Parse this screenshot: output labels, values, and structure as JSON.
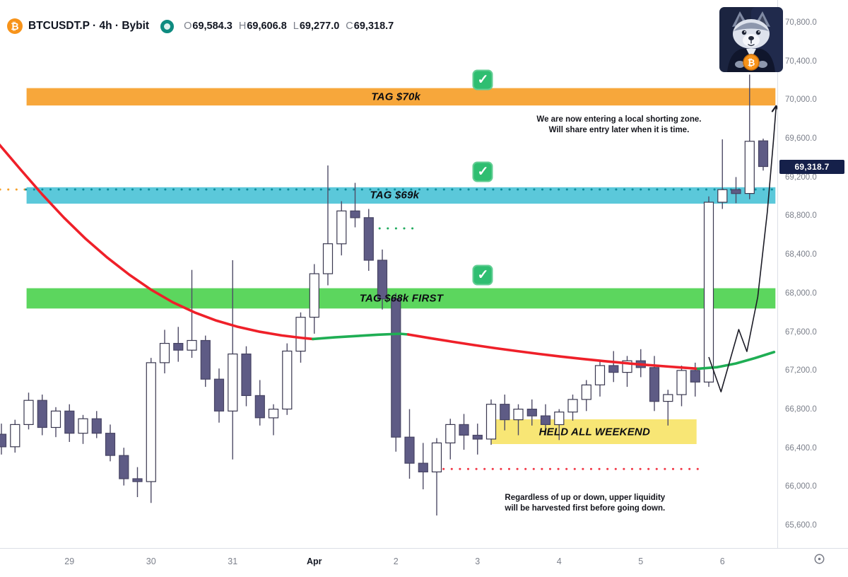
{
  "header": {
    "symbol_icon": "₿",
    "title": "BTCUSDT.P · 4h · Bybit",
    "ohlc": [
      {
        "key": "O",
        "value": "69,584.3"
      },
      {
        "key": "H",
        "value": "69,606.8"
      },
      {
        "key": "L",
        "value": "69,277.0"
      },
      {
        "key": "C",
        "value": "69,318.7"
      }
    ]
  },
  "price_scale": {
    "ticks": [
      {
        "value": 70800,
        "label": "70,800.0"
      },
      {
        "value": 70400,
        "label": "70,400.0"
      },
      {
        "value": 70000,
        "label": "70,000.0"
      },
      {
        "value": 69600,
        "label": "69,600.0"
      },
      {
        "value": 69200,
        "label": "69,200.0"
      },
      {
        "value": 68800,
        "label": "68,800.0"
      },
      {
        "value": 68400,
        "label": "68,400.0"
      },
      {
        "value": 68000,
        "label": "68,000.0"
      },
      {
        "value": 67600,
        "label": "67,600.0"
      },
      {
        "value": 67200,
        "label": "67,200.0"
      },
      {
        "value": 66800,
        "label": "66,800.0"
      },
      {
        "value": 66400,
        "label": "66,400.0"
      },
      {
        "value": 66000,
        "label": "66,000.0"
      },
      {
        "value": 65600,
        "label": "65,600.0"
      }
    ],
    "last": {
      "value": 69318.7,
      "label": "69,318.7",
      "bg": "#15204a",
      "fg": "#ffffff"
    }
  },
  "time_scale": {
    "ticks": [
      {
        "index": 5,
        "label": "29"
      },
      {
        "index": 11,
        "label": "30"
      },
      {
        "index": 17,
        "label": "31"
      },
      {
        "index": 23,
        "label": "Apr",
        "emphasis": true
      },
      {
        "index": 29,
        "label": "2"
      },
      {
        "index": 35,
        "label": "3"
      },
      {
        "index": 41,
        "label": "4"
      },
      {
        "index": 47,
        "label": "5"
      },
      {
        "index": 53,
        "label": "6"
      }
    ]
  },
  "chart_data": {
    "type": "candlestick",
    "symbol": "BTCUSDT.P",
    "interval": "4h",
    "exchange": "Bybit",
    "visible_price_range": [
      65380,
      71040
    ],
    "last_ohlc": {
      "open": 69584.3,
      "high": 69606.8,
      "low": 69277.0,
      "close": 69318.7
    },
    "candles_ohlc": [
      [
        66550,
        66660,
        66340,
        66420
      ],
      [
        66420,
        66700,
        66360,
        66650
      ],
      [
        66650,
        66980,
        66600,
        66900
      ],
      [
        66900,
        66960,
        66540,
        66620
      ],
      [
        66620,
        66830,
        66520,
        66790
      ],
      [
        66790,
        66860,
        66470,
        66560
      ],
      [
        66560,
        66750,
        66450,
        66710
      ],
      [
        66710,
        66790,
        66510,
        66560
      ],
      [
        66560,
        66650,
        66270,
        66330
      ],
      [
        66330,
        66410,
        66020,
        66090
      ],
      [
        66090,
        66210,
        65900,
        66060
      ],
      [
        66060,
        67340,
        65840,
        67290
      ],
      [
        67290,
        67630,
        67180,
        67490
      ],
      [
        67490,
        67660,
        67300,
        67420
      ],
      [
        67420,
        68250,
        67340,
        67520
      ],
      [
        67520,
        67570,
        67040,
        67120
      ],
      [
        67120,
        67230,
        66670,
        66790
      ],
      [
        66790,
        68350,
        66290,
        67380
      ],
      [
        67380,
        67460,
        66840,
        66950
      ],
      [
        66950,
        67110,
        66640,
        66720
      ],
      [
        66720,
        66860,
        66540,
        66810
      ],
      [
        66810,
        67490,
        66750,
        67410
      ],
      [
        67410,
        67810,
        67290,
        67760
      ],
      [
        67760,
        68310,
        67590,
        68210
      ],
      [
        68210,
        69330,
        68090,
        68520
      ],
      [
        68520,
        68960,
        68400,
        68860
      ],
      [
        68860,
        69150,
        68690,
        68790
      ],
      [
        68790,
        68880,
        68240,
        68350
      ],
      [
        68350,
        68460,
        67840,
        67950
      ],
      [
        67950,
        68010,
        66370,
        66520
      ],
      [
        66520,
        66810,
        66090,
        66250
      ],
      [
        66250,
        66460,
        65980,
        66160
      ],
      [
        66160,
        66510,
        65710,
        66460
      ],
      [
        66460,
        66710,
        66290,
        66650
      ],
      [
        66650,
        66760,
        66390,
        66540
      ],
      [
        66540,
        66660,
        66340,
        66500
      ],
      [
        66500,
        66910,
        66440,
        66860
      ],
      [
        66860,
        66960,
        66590,
        66700
      ],
      [
        66700,
        66860,
        66540,
        66810
      ],
      [
        66810,
        66910,
        66640,
        66740
      ],
      [
        66740,
        66860,
        66540,
        66650
      ],
      [
        66650,
        66810,
        66490,
        66780
      ],
      [
        66780,
        66960,
        66690,
        66910
      ],
      [
        66910,
        67110,
        66790,
        67060
      ],
      [
        67060,
        67310,
        66940,
        67260
      ],
      [
        67260,
        67410,
        67090,
        67190
      ],
      [
        67190,
        67360,
        67040,
        67310
      ],
      [
        67310,
        67430,
        67140,
        67240
      ],
      [
        67240,
        67360,
        66790,
        66890
      ],
      [
        66890,
        67010,
        66640,
        66960
      ],
      [
        66960,
        67260,
        66840,
        67210
      ],
      [
        67210,
        67290,
        66940,
        67090
      ],
      [
        67090,
        69010,
        67040,
        68950
      ],
      [
        68950,
        69600,
        68880,
        69080
      ],
      [
        69080,
        69210,
        68940,
        69040
      ],
      [
        69040,
        70270,
        68980,
        69580
      ],
      [
        69584.3,
        69606.8,
        69277.0,
        69318.7
      ]
    ],
    "colors": {
      "up_fill": "#ffffff",
      "up_border": "#3a384f",
      "down_fill": "#5e5b85",
      "down_border": "#474463",
      "wick": "#4e4b66"
    },
    "ma_colored": {
      "description": "slope-colored moving average",
      "segments": [
        {
          "color": "#ef2029",
          "points": [
            [
              -0.15,
              69545
            ],
            [
              1.4,
              69290
            ],
            [
              3.0,
              69030
            ],
            [
              4.6,
              68790
            ],
            [
              6.2,
              68570
            ],
            [
              7.8,
              68375
            ],
            [
              9.4,
              68200
            ],
            [
              11.0,
              68045
            ],
            [
              12.6,
              67915
            ],
            [
              14.2,
              67810
            ],
            [
              15.8,
              67725
            ],
            [
              17.4,
              67660
            ],
            [
              19.0,
              67610
            ],
            [
              20.6,
              67572
            ],
            [
              22.2,
              67545
            ],
            [
              22.9,
              67535
            ]
          ]
        },
        {
          "color": "#1fae54",
          "points": [
            [
              22.9,
              67535
            ],
            [
              24.5,
              67552
            ],
            [
              26.1,
              67566
            ],
            [
              27.7,
              67580
            ],
            [
              29.3,
              67589
            ],
            [
              29.9,
              67582
            ]
          ]
        },
        {
          "color": "#ef2029",
          "points": [
            [
              29.9,
              67582
            ],
            [
              31.5,
              67544
            ],
            [
              33.1,
              67508
            ],
            [
              34.7,
              67473
            ],
            [
              36.3,
              67440
            ],
            [
              37.9,
              67410
            ],
            [
              39.5,
              67381
            ],
            [
              41.1,
              67354
            ],
            [
              42.7,
              67329
            ],
            [
              44.3,
              67306
            ],
            [
              45.9,
              67285
            ],
            [
              47.5,
              67266
            ],
            [
              49.1,
              67249
            ],
            [
              50.3,
              67237
            ],
            [
              51.2,
              67228
            ]
          ]
        },
        {
          "color": "#1fae54",
          "points": [
            [
              51.2,
              67228
            ],
            [
              52.6,
              67243
            ],
            [
              54.0,
              67282
            ],
            [
              55.4,
              67338
            ],
            [
              56.8,
              67400
            ]
          ]
        }
      ]
    },
    "zones": [
      {
        "id": "tag-70k",
        "label": "TAG $70k",
        "price_top": 70130,
        "price_bottom": 69950,
        "from_index": 1.85,
        "to_index": 56.9,
        "color": "rgba(246,160,42,0.92)",
        "label_index": 29.0,
        "checked": true,
        "check_index": 35.4,
        "check_price": 70215
      },
      {
        "id": "tag-69k",
        "label": "TAG $69k",
        "price_top": 69105,
        "price_bottom": 68935,
        "from_index": 1.85,
        "to_index": 56.9,
        "color": "rgba(62,190,212,0.85)",
        "label_index": 28.9,
        "checked": true,
        "check_index": 35.4,
        "check_price": 69264
      },
      {
        "id": "tag-68k",
        "label": "TAG $68k FIRST",
        "price_top": 68060,
        "price_bottom": 67850,
        "from_index": 1.85,
        "to_index": 56.9,
        "color": "rgba(74,210,76,0.9)",
        "label_index": 29.4,
        "checked": true,
        "check_index": 35.4,
        "check_price": 68196
      },
      {
        "id": "held-weekend",
        "label": "HELD ALL WEEKEND",
        "price_top": 66704,
        "price_bottom": 66448,
        "from_index": 36.0,
        "to_index": 51.1,
        "color": "rgba(247,226,93,0.85)",
        "label_index": 43.6,
        "checked": false
      }
    ],
    "dotted_levels": [
      {
        "price": 69081,
        "from_index": -0.1,
        "to_index": 1.8,
        "color": "#f6a02a"
      },
      {
        "price": 69081,
        "from_index": 1.8,
        "to_index": 56.9,
        "color": "#0e8d9c"
      },
      {
        "price": 68679,
        "from_index": 27.8,
        "to_index": 30.4,
        "color": "#22ab5f"
      },
      {
        "price": 66190,
        "from_index": 32.5,
        "to_index": 51.3,
        "color": "#f23645"
      }
    ],
    "annotations": [
      {
        "lines": [
          "We are now entering a local shorting zone.",
          "Will share entry later when it is time."
        ],
        "index": 45.4,
        "price": 69747
      },
      {
        "lines": [
          "Regardless of up or down, upper liquidity",
          "will be harvested first before going down."
        ],
        "index": 42.9,
        "price": 65834
      }
    ],
    "arrow_projection": {
      "color": "#1b1b26",
      "points": [
        [
          52.0,
          67348
        ],
        [
          52.9,
          66989
        ],
        [
          54.2,
          67633
        ],
        [
          54.8,
          67406
        ],
        [
          55.6,
          67970
        ],
        [
          56.3,
          68847
        ],
        [
          56.75,
          69578
        ],
        [
          56.95,
          69940
        ]
      ]
    },
    "checkmark": {
      "bg": "#2fbe71",
      "glyph": "✓"
    }
  }
}
